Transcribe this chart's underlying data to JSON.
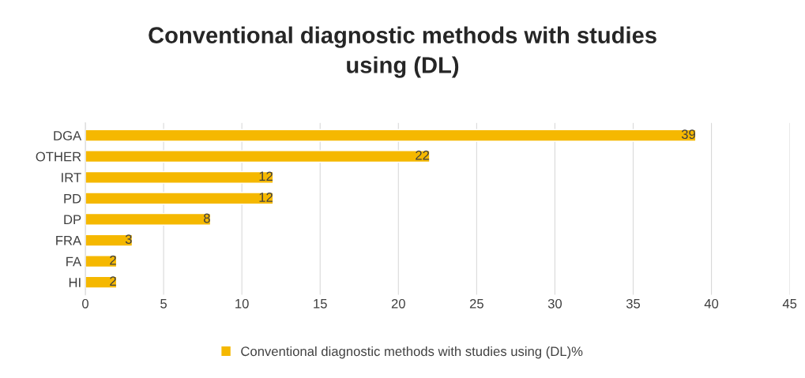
{
  "chart_data": {
    "type": "bar",
    "orientation": "horizontal",
    "title": "Conventional diagnostic methods with studies\nusing (DL)",
    "categories": [
      "DGA",
      "OTHER",
      "IRT",
      "PD",
      "DP",
      "FRA",
      "FA",
      "HI"
    ],
    "series": [
      {
        "name": "Conventional diagnostic methods with studies using (DL)%",
        "color": "#f5b800",
        "values": [
          39,
          22,
          12,
          12,
          8,
          3,
          2,
          2
        ]
      }
    ],
    "xlim": [
      0,
      45
    ],
    "xticks": [
      0,
      5,
      10,
      15,
      20,
      25,
      30,
      35,
      40,
      45
    ],
    "grid": "x",
    "legend": "bottom",
    "data_labels": true
  }
}
